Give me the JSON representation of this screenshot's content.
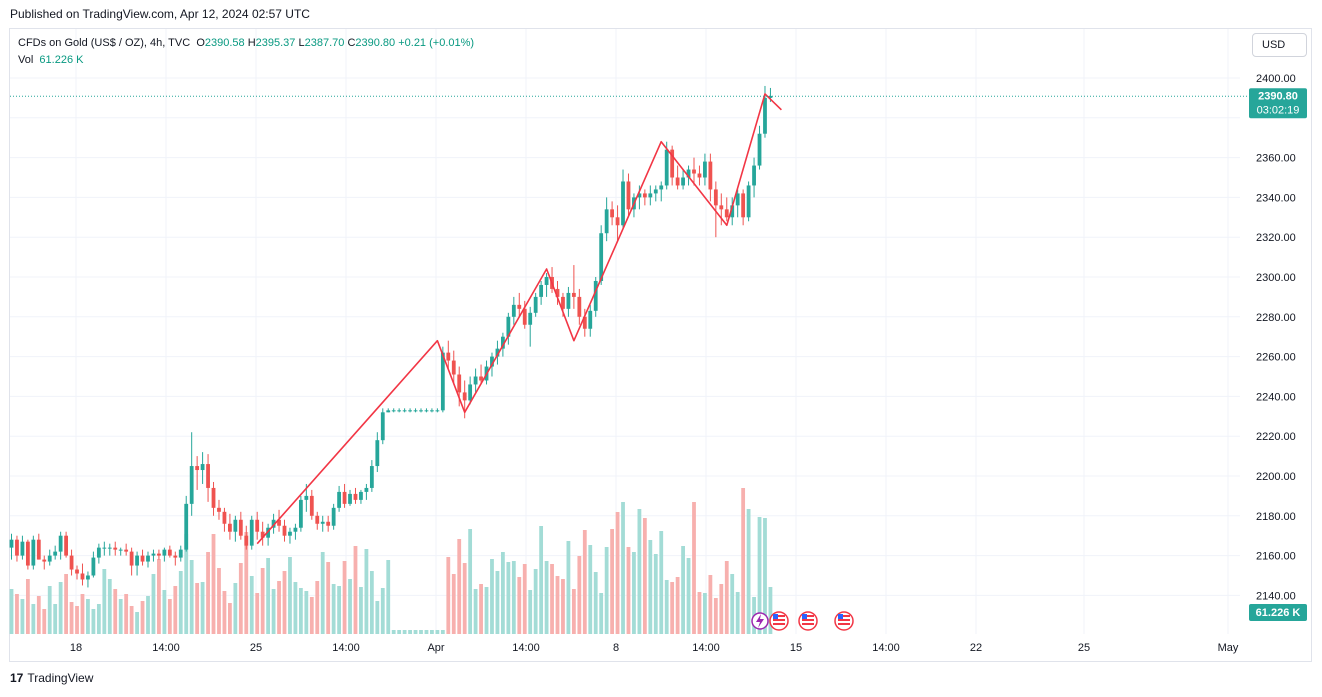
{
  "published": "Published on TradingView.com, Apr 12, 2024 02:57 UTC",
  "legend": {
    "symbol": "CFDs on Gold (US$ / OZ), 4h, TVC",
    "open_label": "O",
    "open": "2390.58",
    "high_label": "H",
    "high": "2395.37",
    "low_label": "L",
    "low": "2387.70",
    "close_label": "C",
    "close": "2390.80",
    "change": "+0.21 (+0.01%)",
    "vol_label": "Vol",
    "vol": "61.226 K"
  },
  "currency_button": "USD",
  "price_badge": {
    "price": "2390.80",
    "countdown": "03:02:19"
  },
  "volume_badge": "61.226 K",
  "footer": {
    "logo_glyph": "17",
    "brand": "TradingView"
  },
  "colors": {
    "up": "#26a69a",
    "down": "#ef5350",
    "zigzag": "#f23645",
    "up_volume": "#a3dcd6",
    "down_volume": "#f7b0ae"
  },
  "chart_data": {
    "type": "candlestick",
    "timeframe": "4h",
    "y_ticks": [
      "2140.00",
      "2160.00",
      "2180.00",
      "2200.00",
      "2220.00",
      "2240.00",
      "2260.00",
      "2280.00",
      "2300.00",
      "2320.00",
      "2340.00",
      "2360.00",
      "2400.00"
    ],
    "ylim": [
      2120,
      2408
    ],
    "x_ticks": [
      "18",
      "14:00",
      "25",
      "14:00",
      "Apr",
      "14:00",
      "8",
      "14:00",
      "15",
      "14:00",
      "22",
      "25",
      "May"
    ],
    "current_price": 2390.8,
    "candles_ohlc": [
      [
        2164,
        2171,
        2158,
        2168
      ],
      [
        2168,
        2170,
        2157,
        2160
      ],
      [
        2160,
        2170,
        2158,
        2167
      ],
      [
        2167,
        2168,
        2153,
        2155
      ],
      [
        2155,
        2170,
        2153,
        2168
      ],
      [
        2168,
        2171,
        2158,
        2158
      ],
      [
        2158,
        2160,
        2153,
        2157
      ],
      [
        2157,
        2163,
        2155,
        2160
      ],
      [
        2160,
        2165,
        2158,
        2162
      ],
      [
        2162,
        2172,
        2158,
        2170
      ],
      [
        2170,
        2172,
        2159,
        2160
      ],
      [
        2160,
        2163,
        2150,
        2153
      ],
      [
        2153,
        2155,
        2148,
        2151
      ],
      [
        2151,
        2156,
        2145,
        2148
      ],
      [
        2148,
        2152,
        2144,
        2150
      ],
      [
        2150,
        2162,
        2149,
        2159
      ],
      [
        2159,
        2166,
        2156,
        2164
      ],
      [
        2164,
        2167,
        2160,
        2164
      ],
      [
        2164,
        2166,
        2160,
        2164
      ],
      [
        2164,
        2167,
        2160,
        2163
      ],
      [
        2163,
        2164,
        2160,
        2163
      ],
      [
        2163,
        2166,
        2160,
        2162
      ],
      [
        2162,
        2164,
        2150,
        2155
      ],
      [
        2155,
        2162,
        2150,
        2160
      ],
      [
        2160,
        2163,
        2155,
        2157
      ],
      [
        2157,
        2162,
        2154,
        2160
      ],
      [
        2160,
        2163,
        2157,
        2161
      ],
      [
        2161,
        2163,
        2158,
        2160
      ],
      [
        2160,
        2164,
        2157,
        2163
      ],
      [
        2163,
        2165,
        2159,
        2160
      ],
      [
        2160,
        2162,
        2155,
        2159
      ],
      [
        2159,
        2165,
        2157,
        2163
      ],
      [
        2163,
        2190,
        2162,
        2186
      ],
      [
        2186,
        2222,
        2180,
        2205
      ],
      [
        2205,
        2210,
        2193,
        2203
      ],
      [
        2203,
        2212,
        2196,
        2206
      ],
      [
        2206,
        2211,
        2187,
        2194
      ],
      [
        2194,
        2197,
        2180,
        2184
      ],
      [
        2184,
        2188,
        2178,
        2182
      ],
      [
        2182,
        2184,
        2172,
        2176
      ],
      [
        2176,
        2181,
        2168,
        2172
      ],
      [
        2172,
        2180,
        2167,
        2178
      ],
      [
        2178,
        2182,
        2168,
        2170
      ],
      [
        2170,
        2175,
        2163,
        2165
      ],
      [
        2165,
        2180,
        2163,
        2178
      ],
      [
        2178,
        2182,
        2168,
        2172
      ],
      [
        2172,
        2177,
        2165,
        2169
      ],
      [
        2169,
        2176,
        2165,
        2174
      ],
      [
        2174,
        2181,
        2171,
        2178
      ],
      [
        2178,
        2183,
        2172,
        2175
      ],
      [
        2175,
        2178,
        2167,
        2170
      ],
      [
        2170,
        2174,
        2166,
        2172
      ],
      [
        2172,
        2176,
        2168,
        2174
      ],
      [
        2174,
        2190,
        2172,
        2188
      ],
      [
        2188,
        2196,
        2182,
        2190
      ],
      [
        2190,
        2193,
        2178,
        2180
      ],
      [
        2180,
        2182,
        2173,
        2176
      ],
      [
        2176,
        2180,
        2172,
        2177
      ],
      [
        2177,
        2180,
        2172,
        2175
      ],
      [
        2175,
        2186,
        2173,
        2184
      ],
      [
        2184,
        2195,
        2182,
        2192
      ],
      [
        2192,
        2196,
        2184,
        2186
      ],
      [
        2186,
        2193,
        2185,
        2191
      ],
      [
        2191,
        2194,
        2186,
        2188
      ],
      [
        2188,
        2193,
        2186,
        2192
      ],
      [
        2192,
        2196,
        2188,
        2194
      ],
      [
        2194,
        2208,
        2192,
        2205
      ],
      [
        2205,
        2222,
        2202,
        2218
      ],
      [
        2218,
        2234,
        2216,
        2232
      ],
      [
        2232,
        2234,
        2232,
        2233
      ],
      [
        2233,
        2234,
        2232,
        2233
      ],
      [
        2233,
        2234,
        2232,
        2233
      ],
      [
        2233,
        2234,
        2232,
        2233
      ],
      [
        2233,
        2234,
        2232,
        2233
      ],
      [
        2233,
        2234,
        2232,
        2233
      ],
      [
        2233,
        2234,
        2232,
        2233
      ],
      [
        2233,
        2234,
        2232,
        2233
      ],
      [
        2233,
        2234,
        2232,
        2233
      ],
      [
        2233,
        2234,
        2232,
        2233
      ],
      [
        2233,
        2265,
        2232,
        2262
      ],
      [
        2262,
        2268,
        2254,
        2258
      ],
      [
        2258,
        2263,
        2246,
        2251
      ],
      [
        2251,
        2255,
        2235,
        2242
      ],
      [
        2242,
        2248,
        2229,
        2238
      ],
      [
        2238,
        2250,
        2236,
        2246
      ],
      [
        2246,
        2254,
        2242,
        2250
      ],
      [
        2250,
        2256,
        2246,
        2248
      ],
      [
        2248,
        2258,
        2246,
        2255
      ],
      [
        2255,
        2262,
        2250,
        2260
      ],
      [
        2260,
        2268,
        2256,
        2264
      ],
      [
        2264,
        2272,
        2260,
        2270
      ],
      [
        2270,
        2282,
        2266,
        2280
      ],
      [
        2280,
        2290,
        2276,
        2286
      ],
      [
        2286,
        2292,
        2280,
        2284
      ],
      [
        2284,
        2288,
        2274,
        2276
      ],
      [
        2276,
        2285,
        2265,
        2282
      ],
      [
        2282,
        2292,
        2280,
        2290
      ],
      [
        2290,
        2298,
        2286,
        2296
      ],
      [
        2296,
        2302,
        2290,
        2300
      ],
      [
        2300,
        2305,
        2292,
        2294
      ],
      [
        2294,
        2298,
        2286,
        2290
      ],
      [
        2290,
        2292,
        2280,
        2284
      ],
      [
        2284,
        2295,
        2280,
        2292
      ],
      [
        2292,
        2306,
        2284,
        2290
      ],
      [
        2290,
        2294,
        2276,
        2280
      ],
      [
        2280,
        2284,
        2270,
        2274
      ],
      [
        2274,
        2286,
        2270,
        2283
      ],
      [
        2283,
        2300,
        2280,
        2298
      ],
      [
        2298,
        2326,
        2296,
        2322
      ],
      [
        2322,
        2340,
        2318,
        2334
      ],
      [
        2334,
        2338,
        2326,
        2330
      ],
      [
        2330,
        2336,
        2318,
        2326
      ],
      [
        2326,
        2354,
        2324,
        2348
      ],
      [
        2348,
        2352,
        2330,
        2334
      ],
      [
        2334,
        2342,
        2330,
        2340
      ],
      [
        2340,
        2346,
        2334,
        2342
      ],
      [
        2342,
        2344,
        2336,
        2340
      ],
      [
        2340,
        2346,
        2336,
        2342
      ],
      [
        2342,
        2346,
        2338,
        2344
      ],
      [
        2344,
        2348,
        2338,
        2346
      ],
      [
        2346,
        2368,
        2344,
        2364
      ],
      [
        2364,
        2366,
        2346,
        2350
      ],
      [
        2350,
        2356,
        2344,
        2346
      ],
      [
        2346,
        2354,
        2344,
        2350
      ],
      [
        2350,
        2356,
        2346,
        2354
      ],
      [
        2354,
        2360,
        2346,
        2352
      ],
      [
        2352,
        2356,
        2346,
        2350
      ],
      [
        2350,
        2362,
        2346,
        2358
      ],
      [
        2358,
        2362,
        2338,
        2344
      ],
      [
        2344,
        2348,
        2320,
        2336
      ],
      [
        2336,
        2342,
        2326,
        2334
      ],
      [
        2334,
        2340,
        2328,
        2330
      ],
      [
        2330,
        2340,
        2326,
        2336
      ],
      [
        2336,
        2344,
        2330,
        2342
      ],
      [
        2342,
        2344,
        2326,
        2330
      ],
      [
        2330,
        2348,
        2328,
        2346
      ],
      [
        2346,
        2360,
        2340,
        2356
      ],
      [
        2356,
        2376,
        2354,
        2372
      ],
      [
        2372,
        2396,
        2370,
        2390
      ],
      [
        2390,
        2395,
        2388,
        2391
      ]
    ],
    "volume": [
      45,
      40,
      35,
      55,
      30,
      38,
      25,
      48,
      30,
      52,
      60,
      32,
      28,
      40,
      35,
      25,
      30,
      65,
      55,
      45,
      35,
      40,
      28,
      22,
      33,
      38,
      60,
      75,
      44,
      35,
      48,
      63,
      100,
      74,
      51,
      52,
      82,
      100,
      66,
      43,
      31,
      51,
      71,
      102,
      58,
      41,
      66,
      76,
      45,
      53,
      63,
      77,
      52,
      46,
      43,
      37,
      53,
      82,
      72,
      50,
      48,
      73,
      55,
      88,
      47,
      85,
      63,
      33,
      46,
      74,
      4,
      4,
      4,
      4,
      4,
      4,
      4,
      4,
      4,
      4,
      77,
      60,
      95,
      71,
      105,
      45,
      50,
      47,
      75,
      63,
      82,
      72,
      73,
      57,
      70,
      44,
      65,
      108,
      73,
      70,
      58,
      55,
      93,
      45,
      78,
      104,
      89,
      62,
      41,
      87,
      105,
      122,
      132,
      87,
      82,
      125,
      116,
      94,
      80,
      103,
      54,
      52,
      57,
      88,
      76,
      132,
      42,
      41,
      59,
      36,
      50,
      73,
      60,
      42,
      146,
      125,
      37,
      117,
      116,
      47
    ]
  }
}
